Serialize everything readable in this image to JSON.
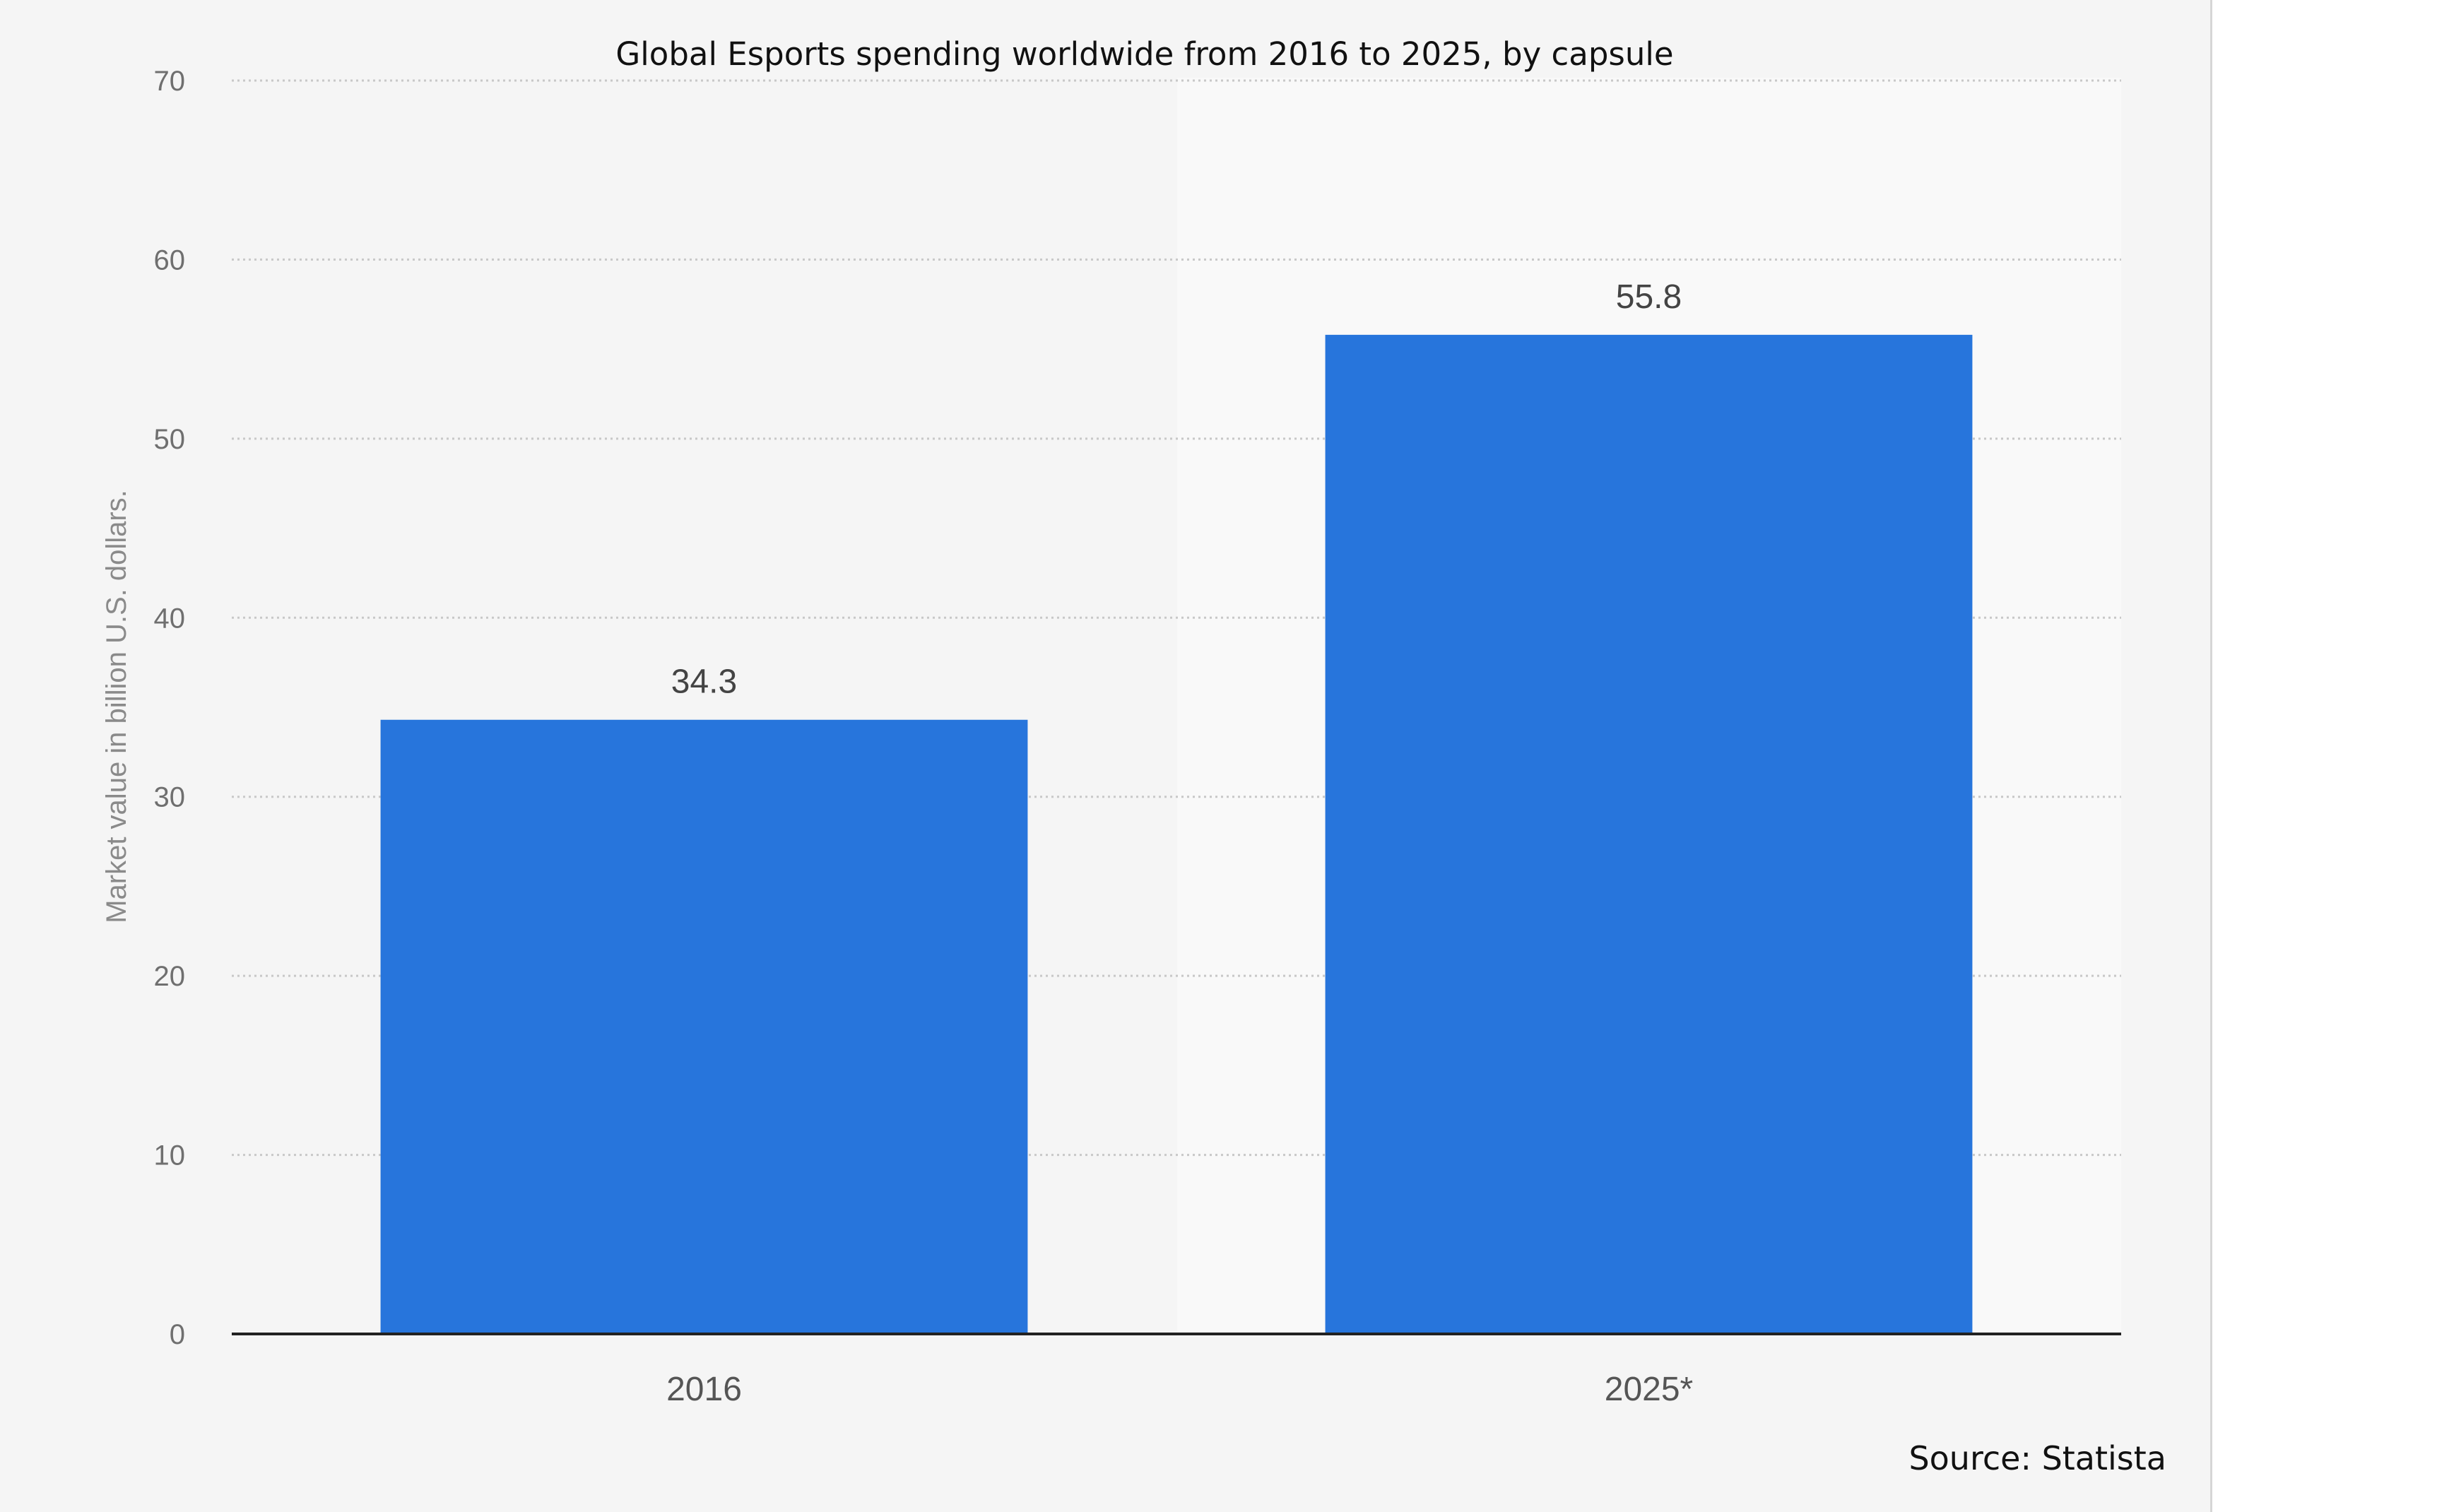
{
  "chart_data": {
    "type": "bar",
    "title": "Global Esports spending worldwide from 2016 to 2025, by capsule",
    "categories": [
      "2016",
      "2025*"
    ],
    "values": [
      34.3,
      55.8
    ],
    "data_labels": [
      "34.3",
      "55.8"
    ],
    "xlabel": "",
    "ylabel": "Market value in billion U.S. dollars.",
    "ylim": [
      0,
      70
    ],
    "yticks": [
      "0",
      "10",
      "20",
      "30",
      "40",
      "50",
      "60",
      "70"
    ],
    "grid": true,
    "legend": "none",
    "source": "Source: Statista",
    "colors": {
      "bar": "#2775dc",
      "panel": "#f5f5f5",
      "gridline": "#c8c8c8",
      "axis": "#222222"
    }
  }
}
